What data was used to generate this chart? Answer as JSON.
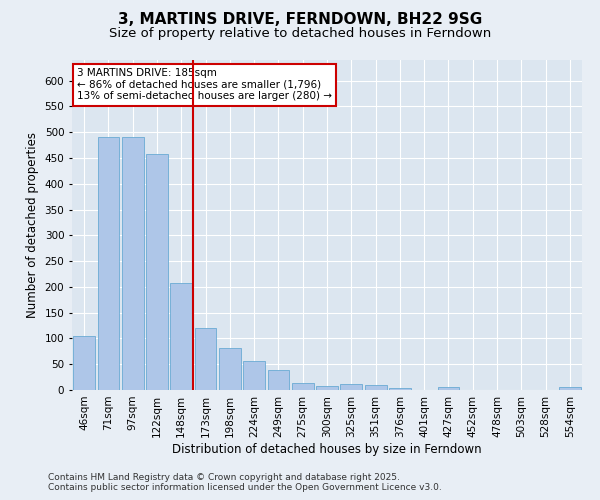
{
  "title": "3, MARTINS DRIVE, FERNDOWN, BH22 9SG",
  "subtitle": "Size of property relative to detached houses in Ferndown",
  "xlabel": "Distribution of detached houses by size in Ferndown",
  "ylabel": "Number of detached properties",
  "categories": [
    "46sqm",
    "71sqm",
    "97sqm",
    "122sqm",
    "148sqm",
    "173sqm",
    "198sqm",
    "224sqm",
    "249sqm",
    "275sqm",
    "300sqm",
    "325sqm",
    "351sqm",
    "376sqm",
    "401sqm",
    "427sqm",
    "452sqm",
    "478sqm",
    "503sqm",
    "528sqm",
    "554sqm"
  ],
  "values": [
    105,
    490,
    490,
    458,
    207,
    120,
    82,
    57,
    38,
    13,
    8,
    11,
    10,
    4,
    0,
    5,
    0,
    0,
    0,
    0,
    5
  ],
  "bar_color": "#aec6e8",
  "bar_edge_color": "#6aaad4",
  "vline_x": 4.5,
  "vline_color": "#cc0000",
  "annotation_text": "3 MARTINS DRIVE: 185sqm\n← 86% of detached houses are smaller (1,796)\n13% of semi-detached houses are larger (280) →",
  "annotation_box_color": "#cc0000",
  "ylim": [
    0,
    640
  ],
  "yticks": [
    0,
    50,
    100,
    150,
    200,
    250,
    300,
    350,
    400,
    450,
    500,
    550,
    600
  ],
  "footer": "Contains HM Land Registry data © Crown copyright and database right 2025.\nContains public sector information licensed under the Open Government Licence v3.0.",
  "bg_color": "#e8eef5",
  "plot_bg_color": "#dce6f0",
  "title_fontsize": 11,
  "subtitle_fontsize": 9.5,
  "tick_fontsize": 7.5,
  "label_fontsize": 8.5,
  "footer_fontsize": 6.5,
  "annotation_fontsize": 7.5
}
